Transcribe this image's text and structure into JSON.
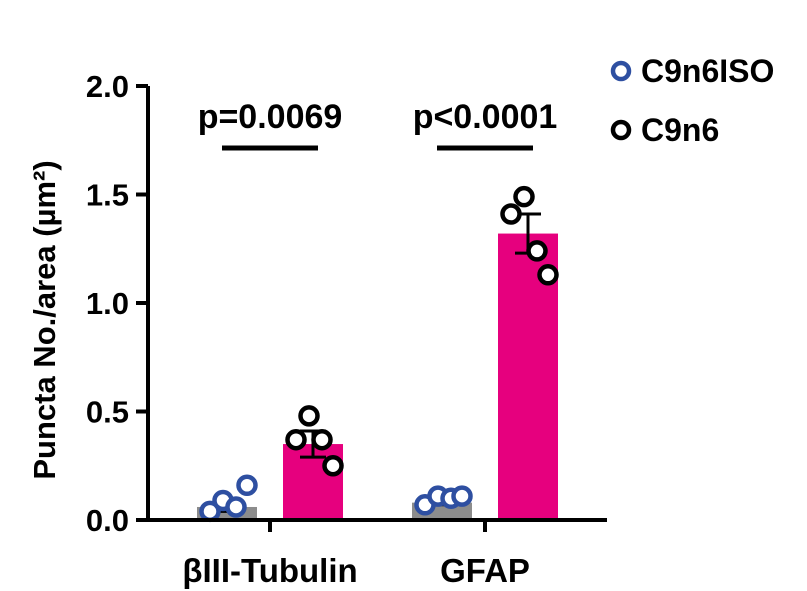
{
  "chart_data": {
    "type": "bar",
    "title": "",
    "xlabel": "",
    "ylabel": "Puncta No./area (µm²)",
    "ylim": [
      0,
      2.0
    ],
    "yticks": [
      "0.0",
      "0.5",
      "1.0",
      "1.5",
      "2.0"
    ],
    "ytick_values": [
      0,
      0.5,
      1.0,
      1.5,
      2.0
    ],
    "categories": [
      "βIII-Tubulin",
      "GFAP"
    ],
    "series": [
      {
        "name": "C9n6ISO",
        "bar_color": "#8c8c8c",
        "marker_color": "#2e4fa1",
        "values": [
          0.06,
          0.08
        ],
        "sem": [
          0.02,
          0.01
        ],
        "points": [
          [
            0.04,
            0.09,
            0.06,
            0.16
          ],
          [
            0.07,
            0.11,
            0.1,
            0.11
          ]
        ]
      },
      {
        "name": "C9n6",
        "bar_color": "#e6007e",
        "marker_color": "#000000",
        "values": [
          0.35,
          1.32
        ],
        "sem": [
          0.06,
          0.09
        ],
        "points": [
          [
            0.37,
            0.48,
            0.37,
            0.25
          ],
          [
            1.41,
            1.49,
            1.24,
            1.13
          ]
        ]
      }
    ],
    "annotations": [
      {
        "text": "p=0.0069",
        "category": "βIII-Tubulin"
      },
      {
        "text": "p<0.0001",
        "category": "GFAP"
      }
    ],
    "legend": {
      "position": "top-right"
    },
    "grid": false
  }
}
